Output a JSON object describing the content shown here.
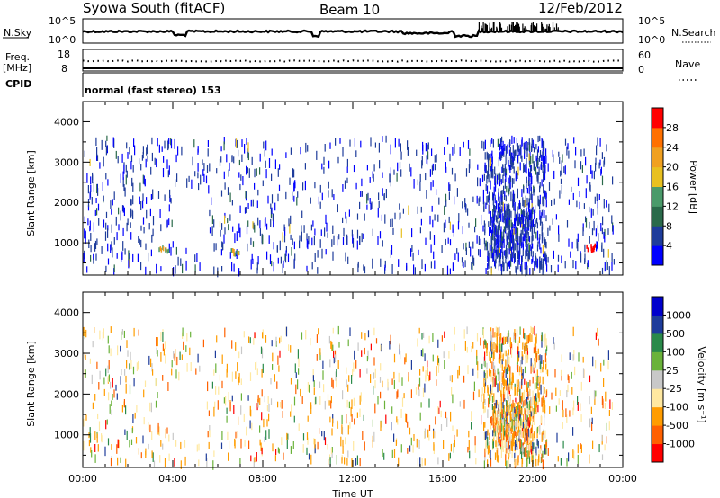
{
  "header": {
    "station": "Syowa South (fitACF)",
    "beam": "Beam 10",
    "date": "12/Feb/2012"
  },
  "noise_panel": {
    "left_label": "N.Sky",
    "right_label": "N.Search",
    "left_ticks": [
      "10^5",
      "10^0"
    ],
    "right_ticks": [
      "10^5",
      "10^0"
    ]
  },
  "freq_panel": {
    "left_label": "Freq.",
    "left_unit": "[MHz]",
    "left_ticks": [
      "18",
      "8"
    ],
    "right_label": "Nave",
    "right_ticks": [
      "60",
      "0"
    ]
  },
  "cpid": {
    "label": "CPID",
    "program": "normal (fast stereo) 153"
  },
  "colors": {
    "power_scale": [
      "#0000ff",
      "#1e3c9b",
      "#2a6a4a",
      "#4a9a6a",
      "#e8c020",
      "#f0a020",
      "#ff7000",
      "#ff0000"
    ],
    "velocity_scale": [
      "#ff0000",
      "#ff6000",
      "#ff9c00",
      "#ffe8a0",
      "#c8c8c8",
      "#6ab23a",
      "#2a8a4a",
      "#1e3c9b",
      "#0000cc"
    ]
  },
  "chart_data": [
    {
      "type": "heatmap",
      "name": "power",
      "title": "",
      "xlabel": "",
      "ylabel": "Slant Range [km]",
      "xlim": [
        0,
        24
      ],
      "ylim": [
        200,
        4500
      ],
      "yticks": [
        "1000",
        "2000",
        "3000",
        "4000"
      ],
      "colorbar": {
        "label": "Power [dB]",
        "ticks": [
          "4",
          "8",
          "12",
          "16",
          "20",
          "24",
          "28"
        ],
        "range": [
          0,
          32
        ]
      },
      "echo_regions": [
        {
          "t_start": 0.0,
          "t_end": 24.0,
          "r_min": 300,
          "r_max": 3600,
          "typical_db": 6
        },
        {
          "t_start": 18.0,
          "t_end": 20.5,
          "r_min": 300,
          "r_max": 3600,
          "typical_db": 8
        }
      ],
      "strong_echoes": [
        {
          "t": 3.6,
          "r": 850,
          "db": 18
        },
        {
          "t": 6.7,
          "r": 800,
          "db": 16
        },
        {
          "t": 22.6,
          "r": 900,
          "db": 26
        }
      ]
    },
    {
      "type": "heatmap",
      "name": "velocity",
      "title": "",
      "xlabel": "Time UT",
      "ylabel": "Slant Range [km]",
      "xlim": [
        0,
        24
      ],
      "ylim": [
        200,
        4500
      ],
      "x_tick_labels": [
        "00:00",
        "04:00",
        "08:00",
        "12:00",
        "16:00",
        "20:00",
        "00:00"
      ],
      "yticks": [
        "1000",
        "2000",
        "3000",
        "4000"
      ],
      "colorbar": {
        "label": "Velocity [m s⁻¹]",
        "ticks": [
          "-1000",
          "-500",
          "-100",
          "-25",
          "25",
          "100",
          "500",
          "1000"
        ],
        "range": [
          -1000,
          1000
        ]
      },
      "echo_regions": [
        {
          "t_start": 0.0,
          "t_end": 24.0,
          "r_min": 300,
          "r_max": 3600,
          "typical_ms": -60
        },
        {
          "t_start": 18.0,
          "t_end": 20.5,
          "r_min": 300,
          "r_max": 3600,
          "typical_ms": -200
        }
      ]
    }
  ]
}
